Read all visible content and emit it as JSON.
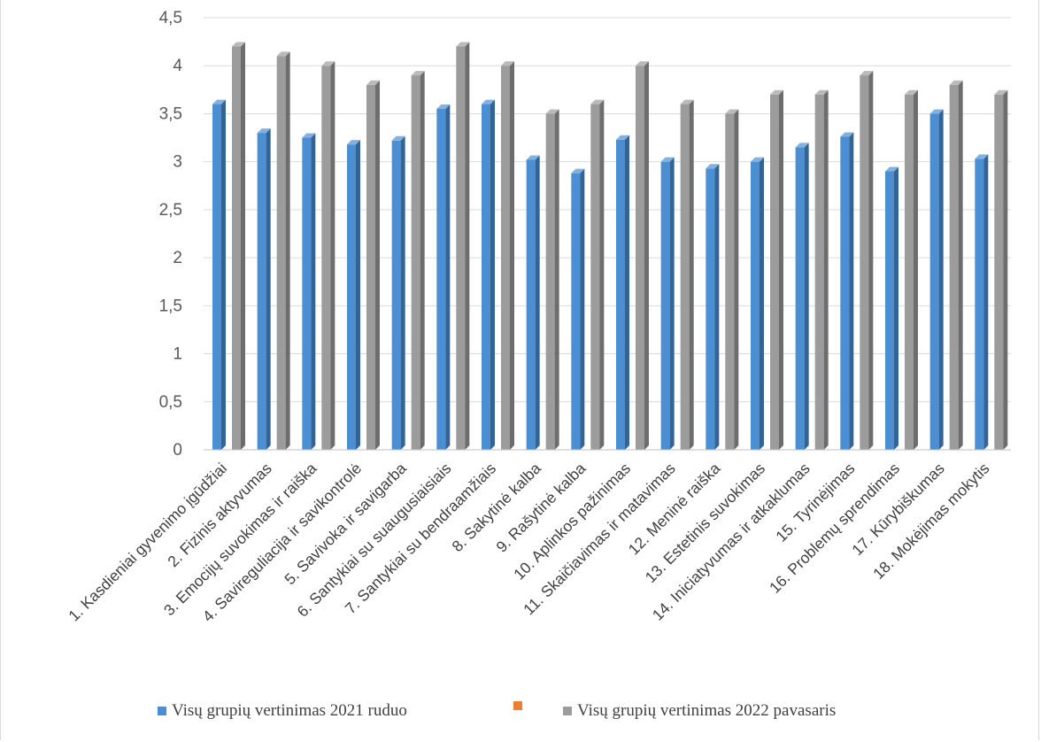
{
  "chart_data": {
    "type": "bar",
    "categories": [
      "1. Kasdieniai gyvenimo įgūdžiai",
      "2. Fizinis aktyvumas",
      "3. Emocijų suvokimas ir raiška",
      "4. Savireguliacija ir savikontrolė",
      "5. Savivoka ir savigarba",
      "6. Santykiai su suaugusiaisiais",
      "7. Santykiai su bendraamžiais",
      "8. Sakytinė kalba",
      "9. Rašytinė kalba",
      "10. Aplinkos pažinimas",
      "11. Skaičiavimas ir matavimas",
      "12. Meninė raiška",
      "13. Estetinis suvokimas",
      "14. Iniciatyvumas ir atkaklumas",
      "15. Tyrinėjimas",
      "16. Problemų sprendimas",
      "17. Kūrybiškumas",
      "18. Mokėjimas mokytis"
    ],
    "series": [
      {
        "name": "Visų grupių vertinimas 2021 ruduo",
        "color": "#4a8fd4",
        "values": [
          3.6,
          3.3,
          3.25,
          3.18,
          3.22,
          3.55,
          3.6,
          3.02,
          2.88,
          3.23,
          3.0,
          2.93,
          3.0,
          3.15,
          3.26,
          2.9,
          3.5,
          3.03
        ]
      },
      {
        "name": "Visų grupių vertinimas 2022 pavasaris",
        "color": "#9c9c9c",
        "values": [
          4.2,
          4.1,
          4.0,
          3.8,
          3.9,
          4.2,
          4.0,
          3.5,
          3.6,
          4.0,
          3.6,
          3.5,
          3.7,
          3.7,
          3.9,
          3.7,
          3.8,
          3.7
        ]
      }
    ],
    "legend_extra": {
      "name": "",
      "color": "#ed7d31"
    },
    "yticks": [
      "0",
      "0,5",
      "1",
      "1,5",
      "2",
      "2,5",
      "3",
      "3,5",
      "4",
      "4,5"
    ],
    "ylim": [
      0,
      4.5
    ],
    "grid": true,
    "legend_position": "bottom",
    "title": "",
    "xlabel": "",
    "ylabel": ""
  }
}
